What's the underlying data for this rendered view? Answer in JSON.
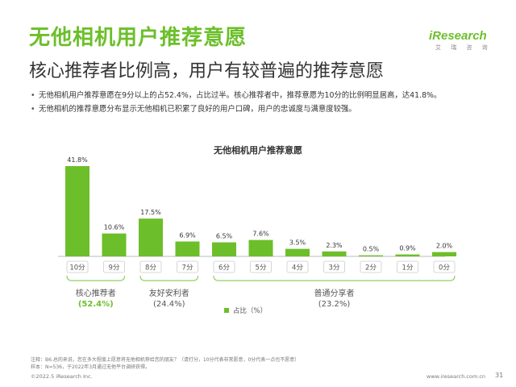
{
  "header": {
    "title": "无他相机用户推荐意愿",
    "subtitle": "核心推荐者比例高，用户有较普遍的推荐意愿"
  },
  "logo": {
    "main": "iResearch",
    "sub": "艾 瑞 咨 询"
  },
  "bullets": [
    "无他相机用户推荐意愿在9分以上的占52.4%，占比过半。核心推荐者中，推荐意愿为10分的比例明显居高，达41.8%。",
    "无他相机的推荐意愿分布显示无他相机已积累了良好的用户口碑，用户的忠诚度与满意度较强。"
  ],
  "chart_data": {
    "type": "bar",
    "title": "无他相机用户推荐意愿",
    "categories": [
      "10分",
      "9分",
      "8分",
      "7分",
      "6分",
      "5分",
      "4分",
      "3分",
      "2分",
      "1分",
      "0分"
    ],
    "series": [
      {
        "name": "占比（%）",
        "values": [
          41.8,
          10.6,
          17.5,
          6.9,
          6.5,
          7.6,
          3.5,
          2.3,
          0.5,
          0.9,
          2.0
        ]
      }
    ],
    "data_labels": [
      "41.8%",
      "10.6%",
      "17.5%",
      "6.9%",
      "6.5%",
      "7.6%",
      "3.5%",
      "2.3%",
      "0.5%",
      "0.9%",
      "2.0%"
    ],
    "highlight_indices": [
      0,
      2,
      5
    ],
    "colors": {
      "highlight": "#6cbf2a",
      "normal": "#6cbf2a",
      "axis": "#bbbbbb",
      "bracket": "#8fd060"
    },
    "groups": [
      {
        "name": "核心推荐者",
        "pct": "(52.4%)",
        "from": 0,
        "to": 1,
        "highlight": true
      },
      {
        "name": "友好安利者",
        "pct": "(24.4%)",
        "from": 2,
        "to": 3,
        "highlight": false
      },
      {
        "name": "普通分享者",
        "pct": "(23.2%)",
        "from": 4,
        "to": 10,
        "highlight": false
      }
    ],
    "legend": "占比（%）",
    "legend_position": "bottom-center"
  },
  "notes": {
    "line1": "注释：B6.总的来说，您在多大程度上愿意将无他相机荐给您的朋友？（请打分，10分代表非常愿意，0分代表一点也不愿意）",
    "line2": "样本：N=536，于2022年3月通过无他平台调研获得。"
  },
  "footer": {
    "left": "©2022.5 iResearch Inc.",
    "right": "www.iresearch.com.cn",
    "page": "31"
  }
}
